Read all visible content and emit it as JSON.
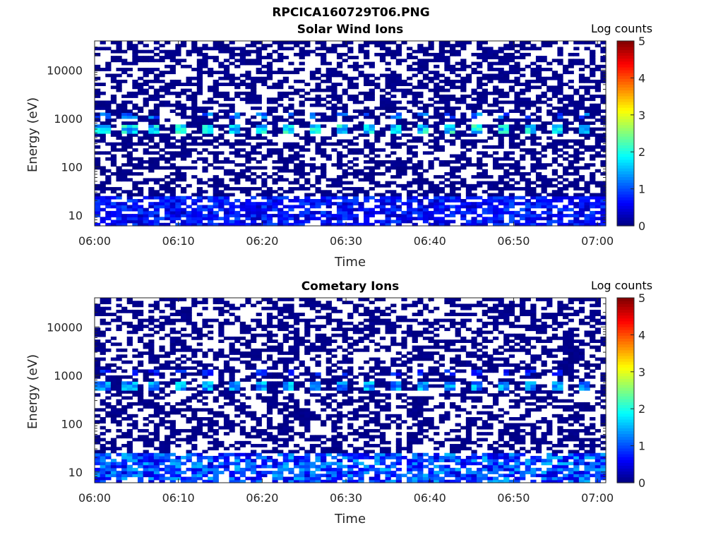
{
  "figure": {
    "title": "RPCICA160729T06.PNG"
  },
  "chart_data": [
    {
      "type": "heatmap",
      "title": "Solar Wind Ions",
      "xlabel": "Time",
      "ylabel": "Energy (eV)",
      "x_range": [
        "06:00",
        "07:01"
      ],
      "x_ticks": [
        "06:00",
        "06:10",
        "06:20",
        "06:30",
        "06:40",
        "06:50",
        "07:00"
      ],
      "y_scale": "log",
      "y_range": [
        6,
        40000
      ],
      "y_ticks": [
        10,
        100,
        1000,
        10000
      ],
      "y_tick_labels": [
        "10",
        "100",
        "1000",
        "10000"
      ],
      "colorbar": {
        "label": "Log counts",
        "range": [
          0,
          5
        ],
        "ticks": [
          "0",
          "1",
          "2",
          "3",
          "4",
          "5"
        ],
        "colormap": "jet"
      },
      "features": [
        {
          "energy_eV": 650,
          "log_counts": 2.3,
          "note": "periodic solar wind peak every ~3.2 min"
        },
        {
          "energy_eV": 1200,
          "log_counts": 1.5
        },
        {
          "energy_range_eV": [
            6,
            25
          ],
          "log_counts": 0.8
        },
        {
          "energy_range_eV": [
            25,
            40000
          ],
          "log_counts": 0.1
        }
      ],
      "seed": 3
    },
    {
      "type": "heatmap",
      "title": "Cometary Ions",
      "xlabel": "Time",
      "ylabel": "Energy (eV)",
      "x_range": [
        "06:00",
        "07:01"
      ],
      "x_ticks": [
        "06:00",
        "06:10",
        "06:20",
        "06:30",
        "06:40",
        "06:50",
        "07:00"
      ],
      "y_scale": "log",
      "y_range": [
        6,
        40000
      ],
      "y_ticks": [
        10,
        100,
        1000,
        10000
      ],
      "y_tick_labels": [
        "10",
        "100",
        "1000",
        "10000"
      ],
      "colorbar": {
        "label": "Log counts",
        "range": [
          0,
          5
        ],
        "ticks": [
          "0",
          "1",
          "2",
          "3",
          "4",
          "5"
        ],
        "colormap": "jet"
      },
      "features": [
        {
          "energy_eV": 650,
          "log_counts": 1.8,
          "note": "periodic peak every ~3.2 min"
        },
        {
          "energy_eV": 1200,
          "log_counts": 1.0
        },
        {
          "energy_range_eV": [
            6,
            25
          ],
          "log_counts": 1.2
        },
        {
          "energy_range_eV": [
            25,
            40000
          ],
          "log_counts": 0.1
        }
      ],
      "seed": 11
    }
  ]
}
